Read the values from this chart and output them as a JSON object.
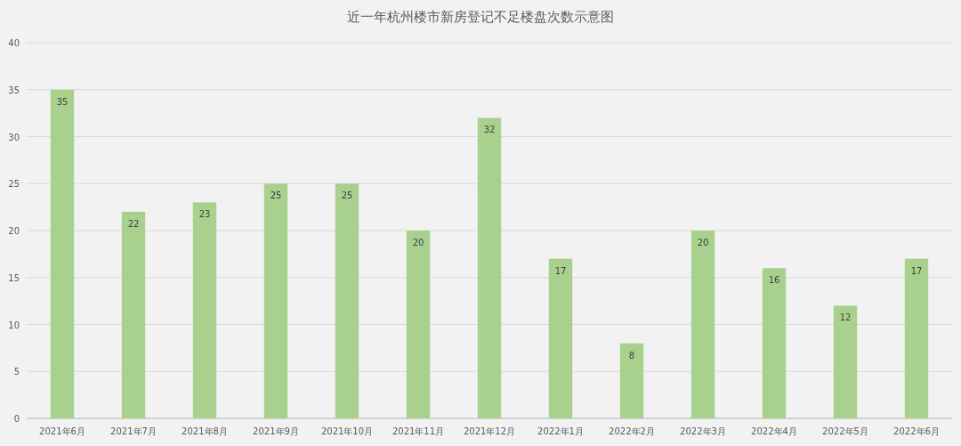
{
  "chart_data": {
    "type": "bar",
    "title": "近一年杭州楼市新房登记不足楼盘次数示意图",
    "categories": [
      "2021年6月",
      "2021年7月",
      "2021年8月",
      "2021年9月",
      "2021年10月",
      "2021年11月",
      "2021年12月",
      "2022年1月",
      "2022年2月",
      "2022年3月",
      "2022年4月",
      "2022年5月",
      "2022年6月"
    ],
    "values": [
      35,
      22,
      23,
      25,
      25,
      20,
      32,
      17,
      8,
      20,
      16,
      12,
      17
    ],
    "color": "#a9d18e",
    "ylim": [
      0,
      40
    ],
    "yticks": [
      0,
      5,
      10,
      15,
      20,
      25,
      30,
      35,
      40
    ],
    "grid": "y",
    "data_labels": true
  }
}
